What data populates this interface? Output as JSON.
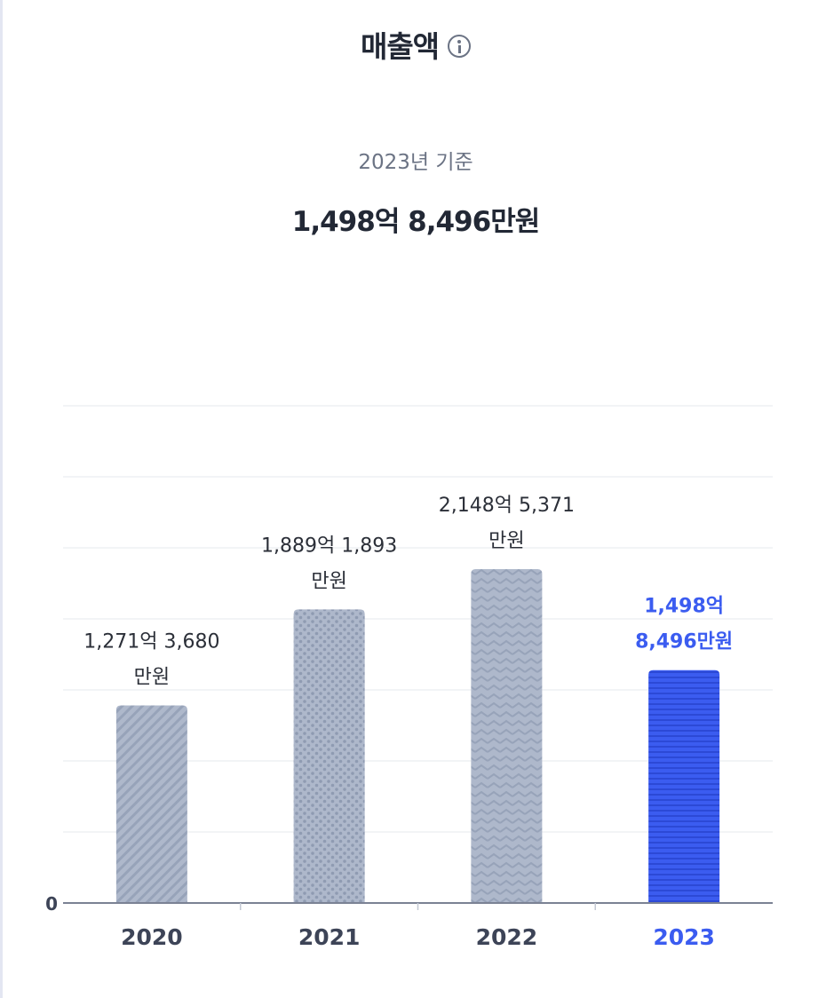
{
  "header": {
    "title": "매출액",
    "basis": "2023년 기준",
    "headline": "1,498억 8,496만원"
  },
  "colors": {
    "bar": "#aeb8cb",
    "bar_pattern": "#97a3b9",
    "highlight": "#3b5cf0",
    "highlight_pattern": "#2c49d6",
    "grid": "#e6e8ee",
    "axis": "#7b8294"
  },
  "chart_data": {
    "type": "bar",
    "categories": [
      "2020",
      "2021",
      "2022",
      "2023"
    ],
    "values": [
      127136.8,
      188918.93,
      214853.71,
      149884.96
    ],
    "value_unit": "백만원",
    "data_labels": [
      [
        "1,271억 3,680",
        "만원"
      ],
      [
        "1,889억 1,893",
        "만원"
      ],
      [
        "2,148억 5,371",
        "만원"
      ],
      [
        "1,498억",
        "8,496만원"
      ]
    ],
    "highlight_index": 3,
    "bar_patterns": [
      "diagonal",
      "dots",
      "zigzag",
      "horizontal"
    ],
    "y_tick_labels": [
      "0"
    ],
    "ylim": [
      0,
      320000
    ],
    "gridlines": 7,
    "grid": true,
    "legend": "none"
  }
}
